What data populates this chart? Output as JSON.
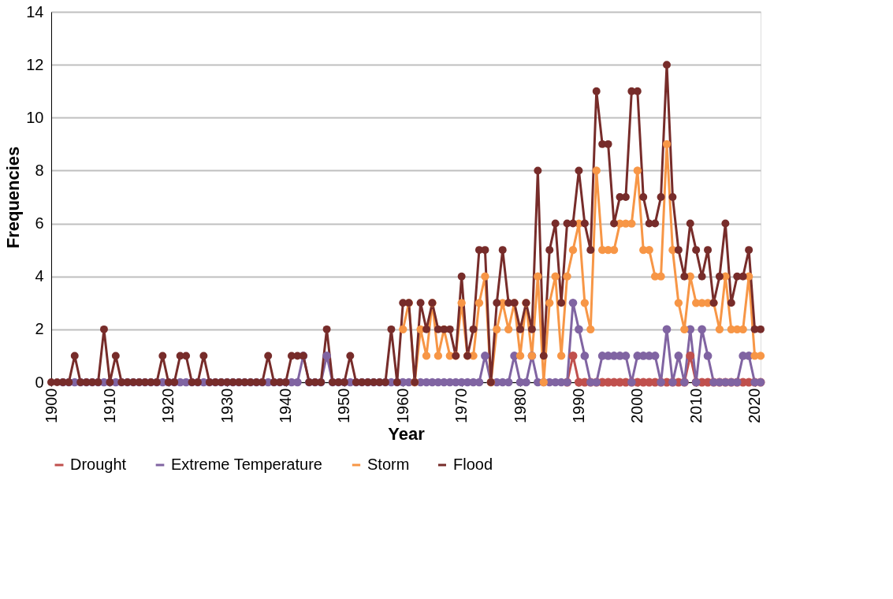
{
  "chart_data": {
    "type": "line",
    "xlabel": "Year",
    "ylabel": "Frequencies",
    "x": [
      1900,
      1901,
      1902,
      1903,
      1904,
      1905,
      1906,
      1907,
      1908,
      1909,
      1910,
      1911,
      1912,
      1913,
      1914,
      1915,
      1916,
      1917,
      1918,
      1919,
      1920,
      1921,
      1922,
      1923,
      1924,
      1925,
      1926,
      1927,
      1928,
      1929,
      1930,
      1931,
      1932,
      1933,
      1934,
      1935,
      1936,
      1937,
      1938,
      1939,
      1940,
      1941,
      1942,
      1943,
      1944,
      1945,
      1946,
      1947,
      1948,
      1949,
      1950,
      1951,
      1952,
      1953,
      1954,
      1955,
      1956,
      1957,
      1958,
      1959,
      1960,
      1961,
      1962,
      1963,
      1964,
      1965,
      1966,
      1967,
      1968,
      1969,
      1970,
      1971,
      1972,
      1973,
      1974,
      1975,
      1976,
      1977,
      1978,
      1979,
      1980,
      1981,
      1982,
      1983,
      1984,
      1985,
      1986,
      1987,
      1988,
      1989,
      1990,
      1991,
      1992,
      1993,
      1994,
      1995,
      1996,
      1997,
      1998,
      1999,
      2000,
      2001,
      2002,
      2003,
      2004,
      2005,
      2006,
      2007,
      2008,
      2009,
      2010,
      2011,
      2012,
      2013,
      2014,
      2015,
      2016,
      2017,
      2018,
      2019,
      2020,
      2021
    ],
    "series": [
      {
        "name": "Drought",
        "color": "#c0504d",
        "values": [
          null,
          null,
          null,
          null,
          null,
          null,
          null,
          null,
          null,
          null,
          null,
          null,
          null,
          null,
          null,
          null,
          null,
          null,
          null,
          null,
          null,
          null,
          null,
          null,
          null,
          null,
          null,
          null,
          null,
          null,
          null,
          null,
          null,
          null,
          null,
          null,
          null,
          null,
          null,
          null,
          null,
          null,
          null,
          null,
          null,
          null,
          null,
          null,
          null,
          null,
          null,
          null,
          null,
          null,
          null,
          null,
          null,
          null,
          null,
          null,
          null,
          null,
          null,
          null,
          null,
          null,
          null,
          null,
          null,
          null,
          null,
          null,
          null,
          null,
          null,
          null,
          null,
          null,
          null,
          null,
          null,
          null,
          null,
          null,
          null,
          null,
          null,
          null,
          0,
          1,
          0,
          0,
          0,
          0,
          0,
          0,
          0,
          0,
          0,
          0,
          0,
          0,
          0,
          0,
          0,
          0,
          0,
          0,
          0,
          1,
          0,
          0,
          0,
          0,
          0,
          0,
          0,
          0,
          0,
          0,
          0,
          0
        ]
      },
      {
        "name": "Extreme Temperature",
        "color": "#8064a2",
        "values": [
          null,
          null,
          0,
          0,
          0,
          0,
          0,
          0,
          0,
          0,
          0,
          0,
          0,
          0,
          0,
          0,
          0,
          0,
          0,
          0,
          0,
          0,
          0,
          0,
          0,
          0,
          0,
          0,
          0,
          0,
          0,
          0,
          0,
          0,
          0,
          0,
          0,
          0,
          0,
          0,
          0,
          0,
          0,
          1,
          0,
          0,
          0,
          1,
          0,
          0,
          0,
          0,
          0,
          0,
          0,
          0,
          0,
          0,
          0,
          0,
          0,
          0,
          0,
          0,
          0,
          0,
          0,
          0,
          0,
          0,
          0,
          0,
          0,
          0,
          1,
          0,
          0,
          0,
          0,
          1,
          0,
          0,
          1,
          0,
          0,
          0,
          0,
          0,
          0,
          3,
          2,
          1,
          0,
          0,
          1,
          1,
          1,
          1,
          1,
          0,
          1,
          1,
          1,
          1,
          0,
          2,
          0,
          1,
          0,
          2,
          0,
          2,
          1,
          0,
          0,
          0,
          0,
          0,
          1,
          1,
          0,
          0
        ]
      },
      {
        "name": "Storm",
        "color": "#f79646",
        "values": [
          null,
          null,
          null,
          null,
          null,
          null,
          null,
          null,
          null,
          null,
          null,
          null,
          null,
          null,
          null,
          null,
          null,
          null,
          null,
          null,
          null,
          null,
          null,
          null,
          null,
          null,
          null,
          null,
          null,
          null,
          null,
          null,
          null,
          null,
          null,
          null,
          null,
          null,
          null,
          null,
          null,
          null,
          null,
          null,
          null,
          null,
          null,
          null,
          null,
          null,
          null,
          null,
          null,
          null,
          null,
          null,
          null,
          null,
          null,
          null,
          2,
          3,
          0,
          2,
          1,
          3,
          1,
          2,
          1,
          1,
          3,
          1,
          1,
          3,
          4,
          0,
          2,
          3,
          2,
          3,
          1,
          3,
          1,
          4,
          0,
          3,
          4,
          1,
          4,
          5,
          6,
          3,
          2,
          8,
          5,
          5,
          5,
          6,
          6,
          6,
          8,
          5,
          5,
          4,
          4,
          9,
          5,
          3,
          2,
          4,
          3,
          3,
          3,
          3,
          2,
          4,
          2,
          2,
          2,
          4,
          1,
          1
        ]
      },
      {
        "name": "Flood",
        "color": "#772c2a",
        "values": [
          0,
          0,
          0,
          0,
          1,
          0,
          0,
          0,
          0,
          2,
          0,
          1,
          0,
          0,
          0,
          0,
          0,
          0,
          0,
          1,
          0,
          0,
          1,
          1,
          0,
          0,
          1,
          0,
          0,
          0,
          0,
          0,
          0,
          0,
          0,
          0,
          0,
          1,
          0,
          0,
          0,
          1,
          1,
          1,
          0,
          0,
          0,
          2,
          0,
          0,
          0,
          1,
          0,
          0,
          0,
          0,
          0,
          0,
          2,
          0,
          3,
          3,
          0,
          3,
          2,
          3,
          2,
          2,
          2,
          1,
          4,
          1,
          2,
          5,
          5,
          0,
          3,
          5,
          3,
          3,
          2,
          3,
          2,
          8,
          1,
          5,
          6,
          3,
          6,
          6,
          8,
          6,
          5,
          11,
          9,
          9,
          6,
          7,
          7,
          11,
          11,
          7,
          6,
          6,
          7,
          12,
          7,
          5,
          4,
          6,
          5,
          4,
          5,
          3,
          4,
          6,
          3,
          4,
          4,
          5,
          2,
          2
        ]
      }
    ],
    "xlim": [
      1900,
      2021
    ],
    "xticks": [
      1900,
      1910,
      1920,
      1930,
      1940,
      1950,
      1960,
      1970,
      1980,
      1990,
      2000,
      2010,
      2020
    ],
    "ylim": [
      0,
      14
    ],
    "yticks": [
      0,
      2,
      4,
      6,
      8,
      10,
      12,
      14
    ],
    "grid": "y",
    "legend": "bottom",
    "marker": "circle",
    "line_style": "solid"
  }
}
